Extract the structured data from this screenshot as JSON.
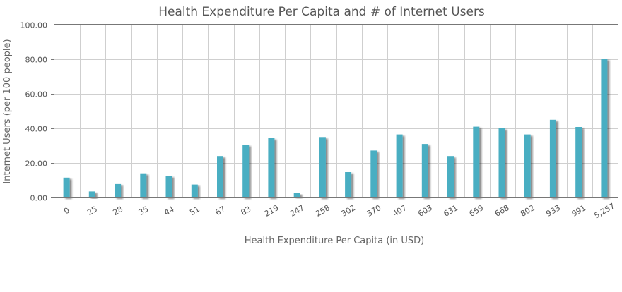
{
  "chart_data": {
    "type": "bar",
    "title": "Health Expenditure Per Capita and # of Internet Users",
    "xlabel": "Health Expenditure Per Capita (in USD)",
    "ylabel": "Internet Users (per 100 people)",
    "ylim": [
      0,
      100
    ],
    "yticks": [
      "0.00",
      "20.00",
      "40.00",
      "60.00",
      "80.00",
      "100.00"
    ],
    "grid": true,
    "categories": [
      "0",
      "25",
      "28",
      "35",
      "44",
      "51",
      "67",
      "83",
      "219",
      "247",
      "258",
      "302",
      "370",
      "407",
      "603",
      "631",
      "659",
      "668",
      "802",
      "933",
      "991",
      "5,257"
    ],
    "series": [
      {
        "name": "Internet Users",
        "color": "#4aaec2",
        "values": [
          11.5,
          3.5,
          7.8,
          14,
          12.5,
          7.5,
          24,
          30.5,
          34.3,
          2.5,
          35,
          14.7,
          27.2,
          36.5,
          31,
          24,
          41,
          40,
          36.5,
          45,
          40.8,
          80.3
        ]
      }
    ]
  }
}
